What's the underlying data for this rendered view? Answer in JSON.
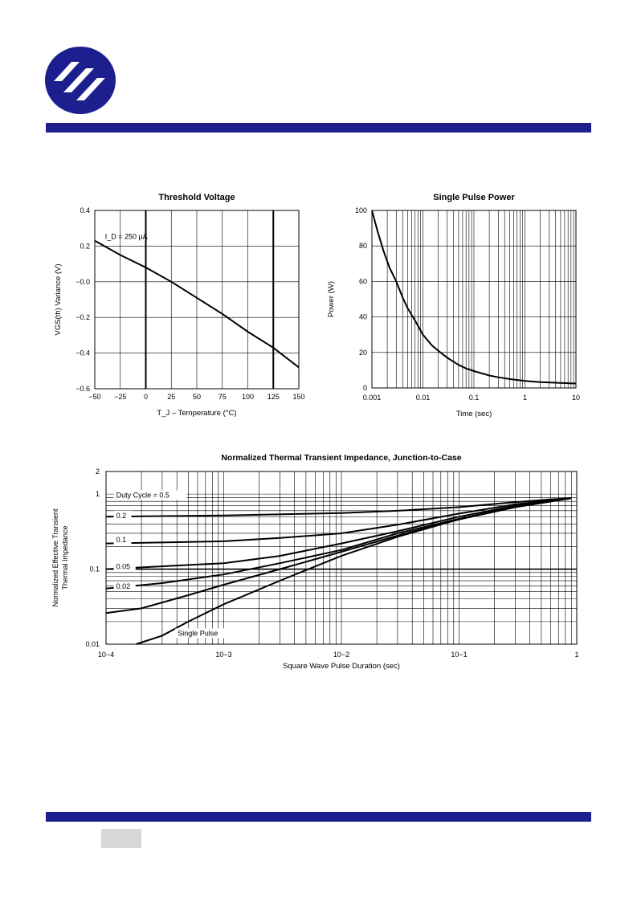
{
  "brand": {
    "color_primary": "#1d1f8f",
    "logo_icon": "company-logo-icon"
  },
  "charts": [
    {
      "id": "threshold-voltage",
      "type": "line",
      "title": "Threshold Voltage",
      "xlabel": "T_J – Temperature (°C)",
      "ylabel": "VGS(th) Variance (V)",
      "annotation": "I_D = 250 µA",
      "xlim": [
        -50,
        150
      ],
      "ylim": [
        -0.6,
        0.4
      ],
      "x_ticks": [
        -50,
        -25,
        0,
        25,
        50,
        75,
        100,
        125,
        150
      ],
      "x_tick_labels": [
        "−50",
        "−25",
        "0",
        "25",
        "50",
        "75",
        "100",
        "125",
        "150"
      ],
      "y_ticks": [
        0.4,
        0.2,
        0,
        -0.2,
        -0.4,
        -0.6
      ],
      "y_tick_labels": [
        "0.4",
        "0.2",
        "−0.0",
        "−0.2",
        "−0.4",
        "−0.6"
      ],
      "bold_vlines": [
        0,
        125
      ],
      "series": [
        {
          "x": [
            -50,
            -25,
            0,
            25,
            50,
            75,
            100,
            125,
            150
          ],
          "y": [
            0.23,
            0.15,
            0.08,
            0.0,
            -0.09,
            -0.18,
            -0.28,
            -0.37,
            -0.48
          ]
        }
      ]
    },
    {
      "id": "single-pulse-power",
      "type": "line",
      "title": "Single Pulse Power",
      "xlabel": "Time (sec)",
      "ylabel": "Power (W)",
      "xscale": "log",
      "xlim": [
        0.001,
        10
      ],
      "ylim": [
        0,
        100
      ],
      "x_ticks": [
        0.001,
        0.01,
        0.1,
        1,
        10
      ],
      "x_tick_labels": [
        "0.001",
        "0.01",
        "0.1",
        "1",
        "10"
      ],
      "y_ticks": [
        0,
        20,
        40,
        60,
        80,
        100
      ],
      "y_tick_labels": [
        "0",
        "20",
        "40",
        "60",
        "80",
        "100"
      ],
      "series": [
        {
          "x": [
            0.001,
            0.0013,
            0.0017,
            0.0022,
            0.003,
            0.004,
            0.005,
            0.007,
            0.01,
            0.015,
            0.02,
            0.03,
            0.05,
            0.07,
            0.1,
            0.2,
            0.3,
            0.5,
            1,
            2,
            5,
            10
          ],
          "y": [
            100,
            88,
            77,
            68,
            60,
            51,
            45,
            38,
            30,
            24,
            21,
            17,
            13,
            11,
            9.5,
            7,
            6,
            5,
            4,
            3.3,
            2.8,
            2.5
          ]
        }
      ]
    },
    {
      "id": "thermal-impedance",
      "type": "line",
      "title": "Normalized Thermal Transient Impedance, Junction-to-Case",
      "xlabel": "Square Wave Pulse Duration (sec)",
      "ylabel": "Normalized Effective Transient Thermal Impedance",
      "xscale": "log",
      "yscale": "log",
      "xlim": [
        0.0001,
        1
      ],
      "ylim": [
        0.01,
        2
      ],
      "x_ticks": [
        0.0001,
        0.001,
        0.01,
        0.1,
        1
      ],
      "x_tick_labels": [
        "10−4",
        "10−3",
        "10−2",
        "10−1",
        "1"
      ],
      "y_ticks": [
        0.01,
        0.1,
        1,
        2
      ],
      "y_tick_labels": [
        "0.01",
        "0.1",
        "1",
        "2"
      ],
      "bold_hlines": [
        0.1
      ],
      "series_labels": [
        {
          "text": "Duty Cycle = 0.5",
          "x": 0.00012,
          "y": 0.9
        },
        {
          "text": "0.2",
          "x": 0.00012,
          "y": 0.48
        },
        {
          "text": "0.1",
          "x": 0.00012,
          "y": 0.23
        },
        {
          "text": "0.05",
          "x": 0.00012,
          "y": 0.1
        },
        {
          "text": "0.02",
          "x": 0.00012,
          "y": 0.055
        },
        {
          "text": "Single Pulse",
          "x": 0.0004,
          "y": 0.013
        }
      ],
      "series": [
        {
          "x": [
            0.0001,
            0.001,
            0.01,
            0.03,
            0.1,
            0.3,
            0.6,
            0.9
          ],
          "y": [
            0.5,
            0.52,
            0.56,
            0.6,
            0.67,
            0.78,
            0.85,
            0.88
          ]
        },
        {
          "x": [
            0.0001,
            0.001,
            0.003,
            0.01,
            0.03,
            0.1,
            0.3,
            0.9
          ],
          "y": [
            0.22,
            0.235,
            0.26,
            0.3,
            0.39,
            0.55,
            0.73,
            0.88
          ]
        },
        {
          "x": [
            0.0001,
            0.001,
            0.003,
            0.01,
            0.03,
            0.1,
            0.3,
            0.9
          ],
          "y": [
            0.1,
            0.12,
            0.15,
            0.22,
            0.32,
            0.5,
            0.7,
            0.88
          ]
        },
        {
          "x": [
            0.0001,
            0.0003,
            0.001,
            0.003,
            0.01,
            0.03,
            0.1,
            0.3,
            0.9
          ],
          "y": [
            0.055,
            0.065,
            0.085,
            0.12,
            0.18,
            0.3,
            0.47,
            0.68,
            0.88
          ]
        },
        {
          "x": [
            0.0001,
            0.0002,
            0.0005,
            0.001,
            0.003,
            0.01,
            0.03,
            0.1,
            0.3,
            0.9
          ],
          "y": [
            0.026,
            0.03,
            0.045,
            0.062,
            0.1,
            0.17,
            0.28,
            0.46,
            0.67,
            0.88
          ]
        },
        {
          "x": [
            0.00018,
            0.0003,
            0.0005,
            0.001,
            0.003,
            0.01,
            0.03,
            0.1,
            0.3,
            0.9
          ],
          "y": [
            0.01,
            0.013,
            0.02,
            0.034,
            0.07,
            0.15,
            0.27,
            0.46,
            0.67,
            0.88
          ]
        }
      ]
    }
  ]
}
